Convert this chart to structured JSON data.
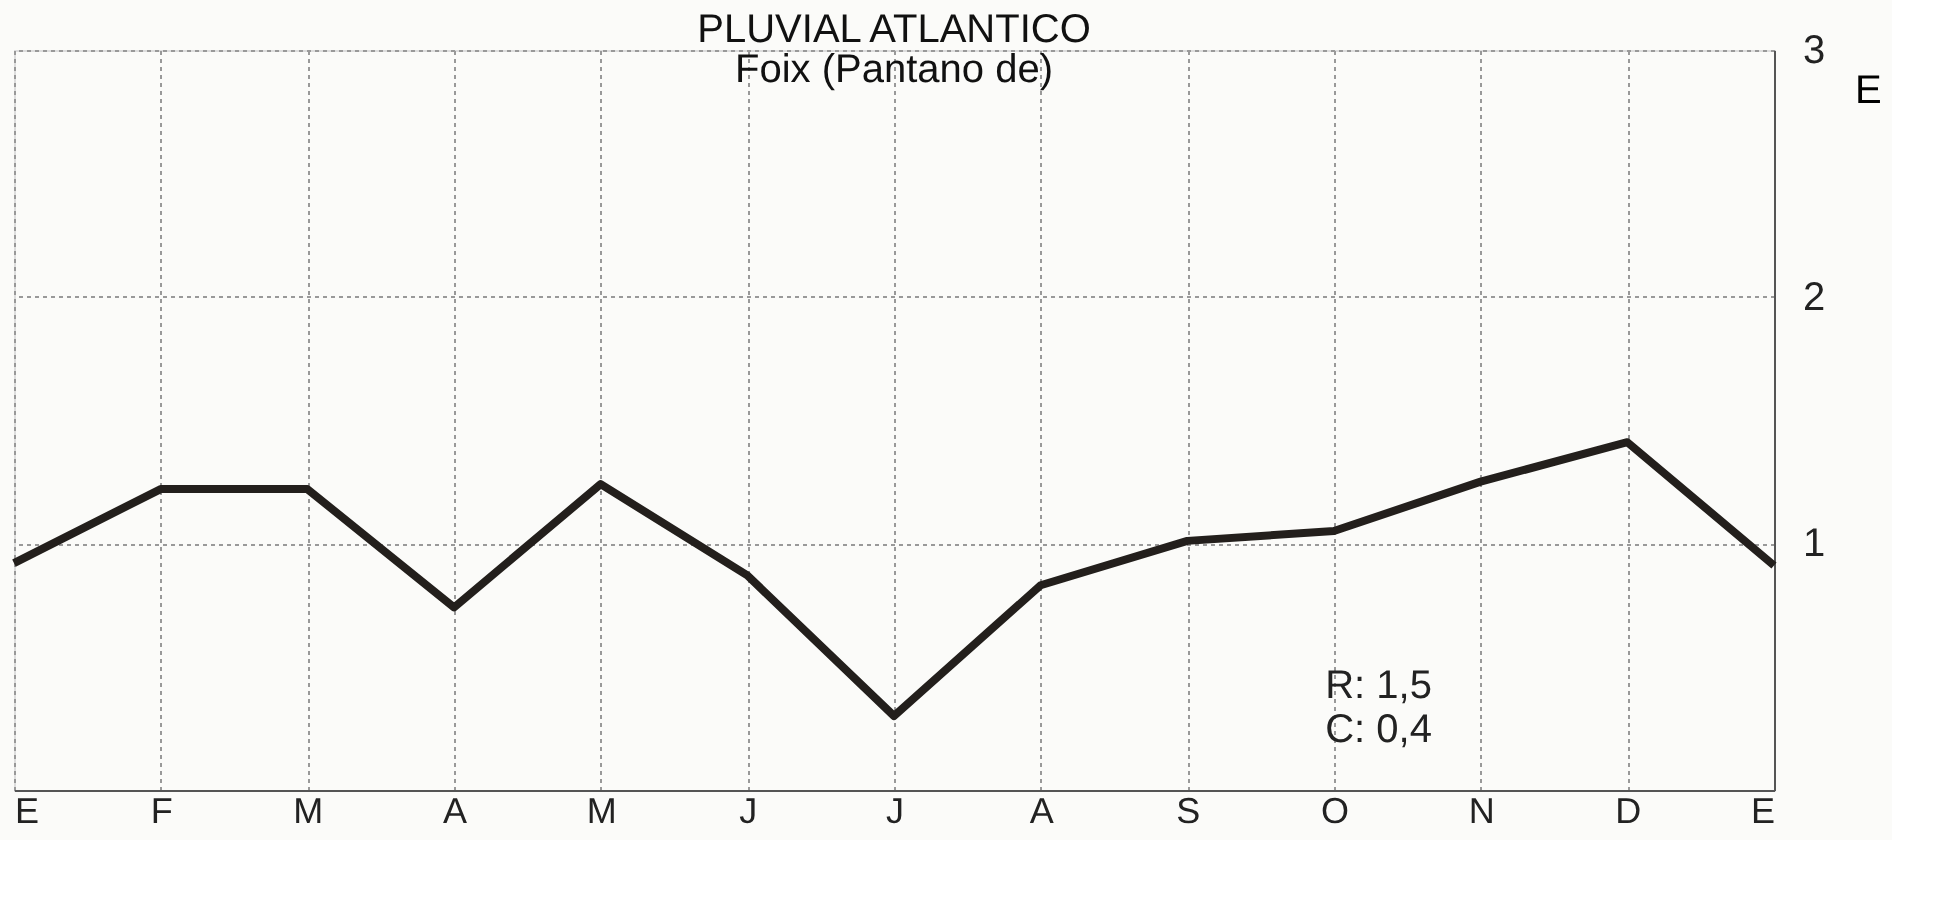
{
  "chart_data": {
    "type": "line",
    "title": "PLUVIAL ATLANTICO",
    "subtitle": "Foix (Pantano de)",
    "ylabel": "E",
    "categories": [
      "E",
      "F",
      "M",
      "A",
      "M",
      "J",
      "J",
      "A",
      "S",
      "O",
      "N",
      "D",
      "E"
    ],
    "series": [
      {
        "color": "#231f1c",
        "values": [
          0.92,
          1.22,
          1.22,
          0.74,
          1.24,
          0.87,
          0.3,
          0.83,
          1.01,
          1.05,
          1.25,
          1.41,
          0.91
        ]
      }
    ],
    "ylim": [
      0,
      3
    ],
    "yticks": [
      1,
      2,
      3
    ],
    "grid": true,
    "line_style": "solid",
    "marker": "none",
    "annotations": [
      "R: 1,5",
      "C: 0,4"
    ]
  }
}
